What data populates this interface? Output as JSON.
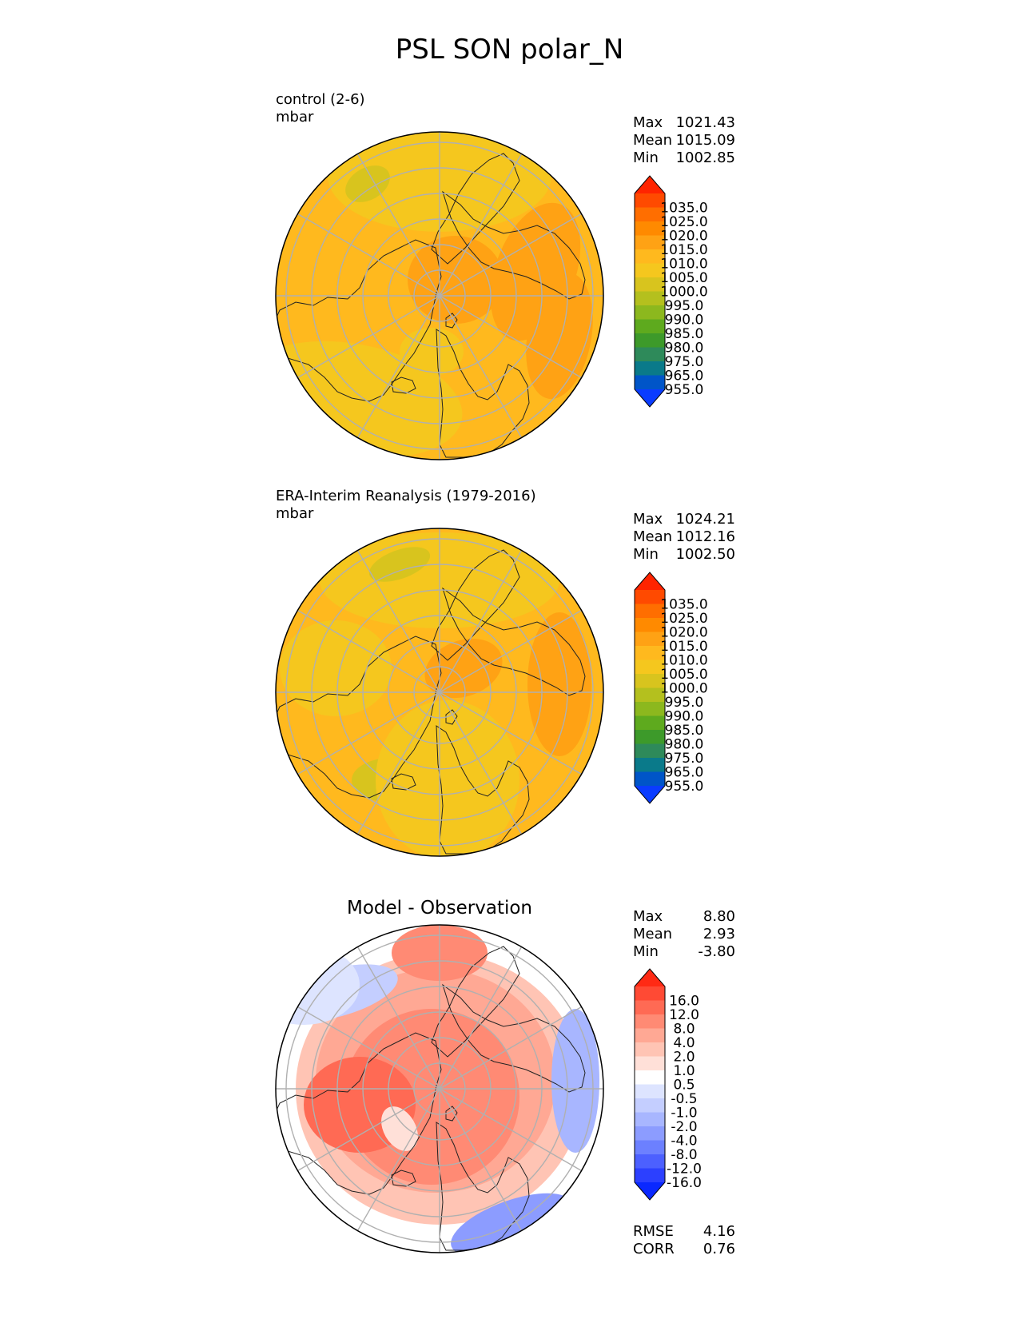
{
  "figure": {
    "title": "PSL SON polar_N"
  },
  "chart_data": [
    {
      "type": "heatmap",
      "projection": "north-polar-stereographic",
      "title": "control (2-6)",
      "units": "mbar",
      "stats": [
        {
          "name": "Max",
          "value": "1021.43"
        },
        {
          "name": "Mean",
          "value": "1015.09"
        },
        {
          "name": "Min",
          "value": "1002.85"
        }
      ],
      "colorbar": {
        "levels": [
          "1035.0",
          "1025.0",
          "1020.0",
          "1015.0",
          "1010.0",
          "1005.0",
          "1000.0",
          "995.0",
          "990.0",
          "985.0",
          "980.0",
          "975.0",
          "965.0",
          "955.0"
        ],
        "colors": [
          "#ff2400",
          "#ff4a00",
          "#ff6e00",
          "#ff8a00",
          "#ffa214",
          "#ffb91e",
          "#f5c71e",
          "#d8c41e",
          "#b4c01e",
          "#8cb81e",
          "#5eaa1e",
          "#3d9a2a",
          "#2e8a5a",
          "#0a7a8a",
          "#0055c8",
          "#0a3cff"
        ],
        "extend": "both"
      }
    },
    {
      "type": "heatmap",
      "projection": "north-polar-stereographic",
      "title": "ERA-Interim Reanalysis (1979-2016)",
      "units": "mbar",
      "stats": [
        {
          "name": "Max",
          "value": "1024.21"
        },
        {
          "name": "Mean",
          "value": "1012.16"
        },
        {
          "name": "Min",
          "value": "1002.50"
        }
      ],
      "colorbar": {
        "levels": [
          "1035.0",
          "1025.0",
          "1020.0",
          "1015.0",
          "1010.0",
          "1005.0",
          "1000.0",
          "995.0",
          "990.0",
          "985.0",
          "980.0",
          "975.0",
          "965.0",
          "955.0"
        ],
        "colors": [
          "#ff2400",
          "#ff4a00",
          "#ff6e00",
          "#ff8a00",
          "#ffa214",
          "#ffb91e",
          "#f5c71e",
          "#d8c41e",
          "#b4c01e",
          "#8cb81e",
          "#5eaa1e",
          "#3d9a2a",
          "#2e8a5a",
          "#0a7a8a",
          "#0055c8",
          "#0a3cff"
        ],
        "extend": "both"
      }
    },
    {
      "type": "heatmap",
      "projection": "north-polar-stereographic",
      "title": "Model - Observation",
      "stats": [
        {
          "name": "Max",
          "value": "8.80"
        },
        {
          "name": "Mean",
          "value": "2.93"
        },
        {
          "name": "Min",
          "value": "-3.80"
        }
      ],
      "metrics": [
        {
          "name": "RMSE",
          "value": "4.16"
        },
        {
          "name": "CORR",
          "value": "0.76"
        }
      ],
      "colorbar": {
        "levels": [
          "16.0",
          "12.0",
          "8.0",
          "4.0",
          "2.0",
          "1.0",
          "0.5",
          "-0.5",
          "-1.0",
          "-2.0",
          "-4.0",
          "-8.0",
          "-12.0",
          "-16.0"
        ],
        "colors": [
          "#ff2a14",
          "#ff4a34",
          "#ff6a54",
          "#ff8a74",
          "#ffa894",
          "#ffc4b4",
          "#ffe0d8",
          "#ffffff",
          "#dde4ff",
          "#c4ceff",
          "#a8b6ff",
          "#8c9cff",
          "#6c80ff",
          "#4c60ff",
          "#2c40ff",
          "#0a28ff"
        ],
        "extend": "both"
      }
    }
  ]
}
